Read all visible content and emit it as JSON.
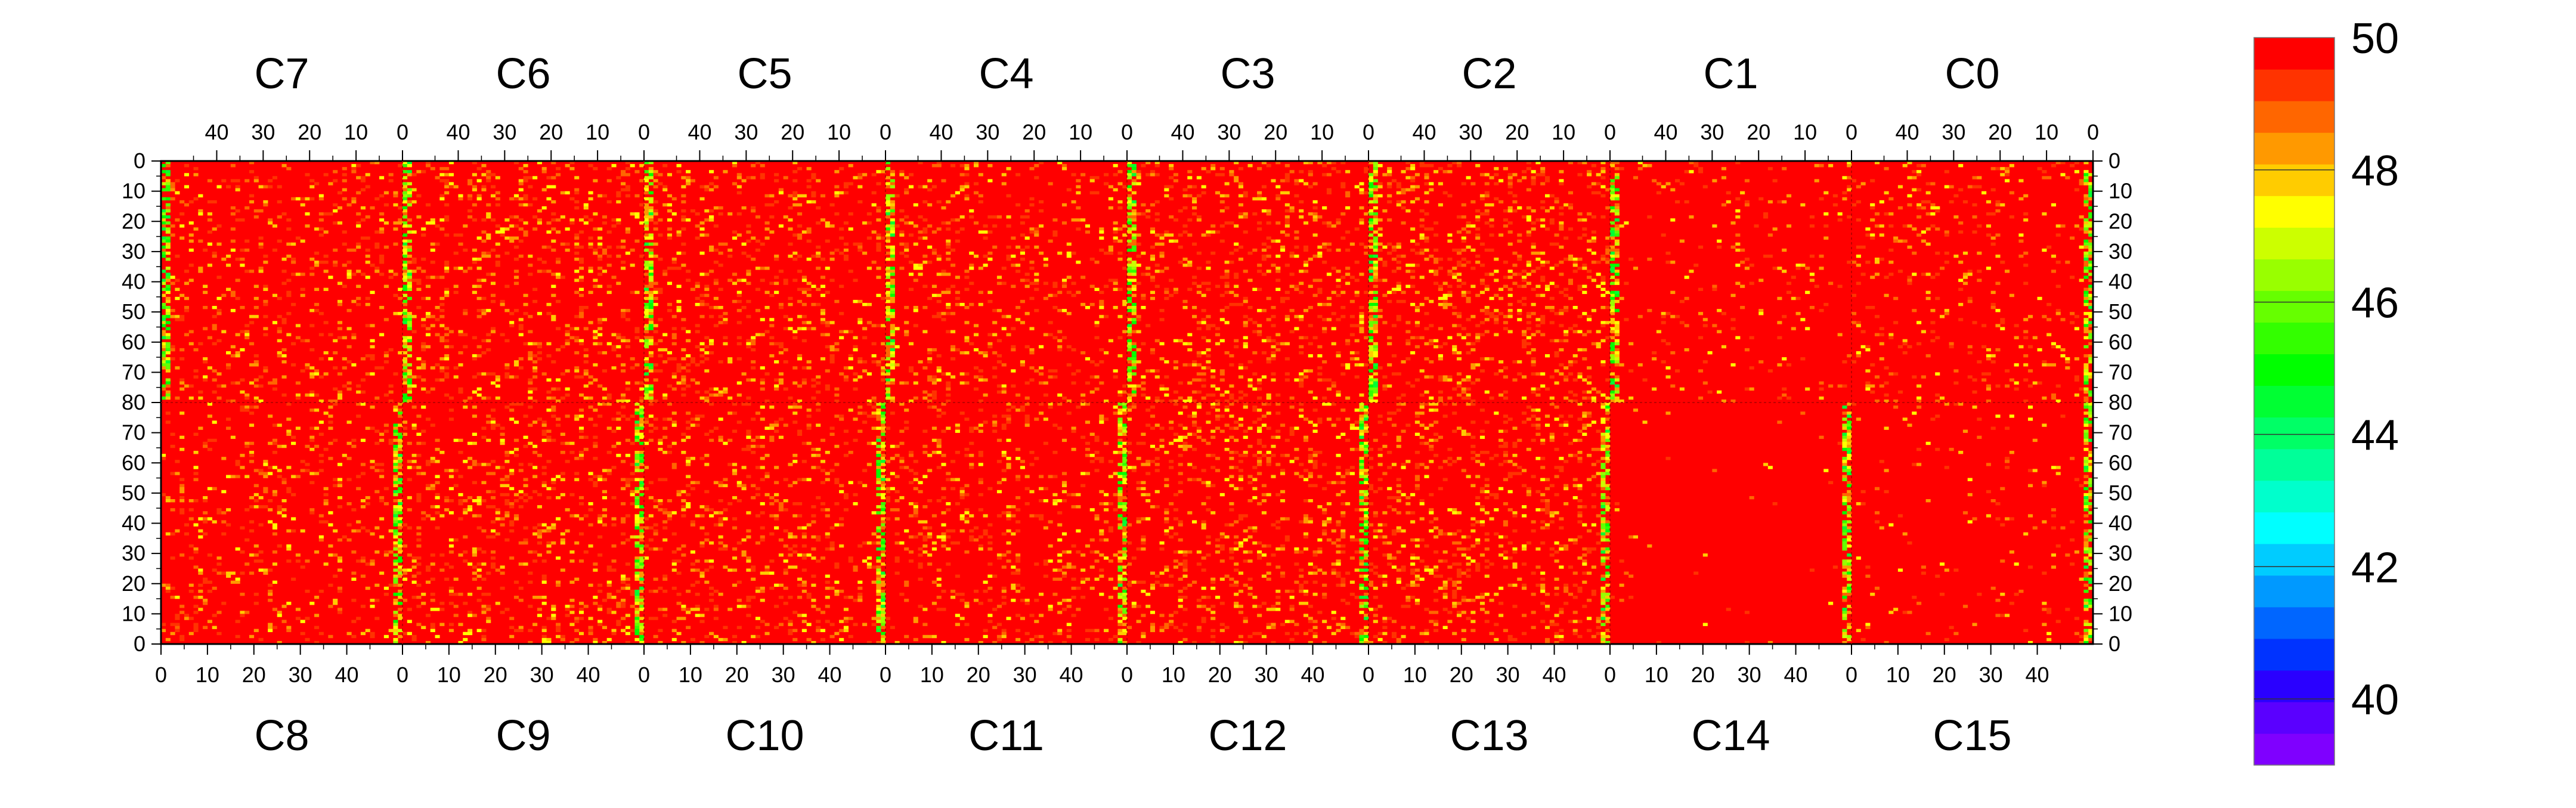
{
  "chart_data": {
    "type": "heatmap",
    "title": "",
    "colorbar": {
      "min": 39,
      "max": 50,
      "tick_values": [
        40,
        42,
        44,
        46,
        48,
        50
      ],
      "tick_labels": [
        "40",
        "42",
        "44",
        "46",
        "48",
        "50"
      ],
      "palette": [
        "#7f00ff",
        "#5a00ff",
        "#2a00ff",
        "#0033ff",
        "#0066ff",
        "#0099ff",
        "#00ccff",
        "#00ffff",
        "#00ffcc",
        "#00ff99",
        "#00ff66",
        "#00ff33",
        "#00ff00",
        "#33ff00",
        "#66ff00",
        "#99ff00",
        "#ccff00",
        "#ffff00",
        "#ffcc00",
        "#ff9900",
        "#ff6600",
        "#ff3300",
        "#ff0000"
      ]
    },
    "chips_top": [
      "C7",
      "C6",
      "C5",
      "C4",
      "C3",
      "C2",
      "C1",
      "C0"
    ],
    "chips_bottom": [
      "C8",
      "C9",
      "C10",
      "C11",
      "C12",
      "C13",
      "C14",
      "C15"
    ],
    "columns_per_chip": 52,
    "rows_per_half": 80,
    "x_ticks_top": [
      "40",
      "30",
      "20",
      "10",
      "0"
    ],
    "x_ticks_bottom": [
      "0",
      "10",
      "20",
      "30",
      "40"
    ],
    "y_ticks_top_half": [
      "0",
      "10",
      "20",
      "30",
      "40",
      "50",
      "60",
      "70",
      "80"
    ],
    "y_ticks_bottom_half": [
      "70",
      "60",
      "50",
      "40",
      "30",
      "20",
      "10",
      "0"
    ],
    "dominant_value": 50,
    "chip_profiles": {
      "C7": {
        "noise": 0.12,
        "low_edge_col": 0
      },
      "C6": {
        "noise": 0.16,
        "low_edge_col": 0
      },
      "C5": {
        "noise": 0.15,
        "low_edge_col": 0
      },
      "C4": {
        "noise": 0.13,
        "low_edge_col": 0
      },
      "C3": {
        "noise": 0.16,
        "low_edge_col": 0
      },
      "C2": {
        "noise": 0.18,
        "low_edge_col": 0
      },
      "C1": {
        "noise": 0.05,
        "low_edge_col": 0
      },
      "C0": {
        "noise": 0.09,
        "low_edge_col": 51
      },
      "C8": {
        "noise": 0.12,
        "low_edge_col": 51
      },
      "C9": {
        "noise": 0.15,
        "low_edge_col": 51
      },
      "C10": {
        "noise": 0.15,
        "low_edge_col": 51
      },
      "C11": {
        "noise": 0.13,
        "low_edge_col": 51
      },
      "C12": {
        "noise": 0.16,
        "low_edge_col": 51
      },
      "C13": {
        "noise": 0.16,
        "low_edge_col": 51
      },
      "C14": {
        "noise": 0.01,
        "low_edge_col": 51
      },
      "C15": {
        "noise": 0.03,
        "low_edge_col": 51
      }
    }
  }
}
